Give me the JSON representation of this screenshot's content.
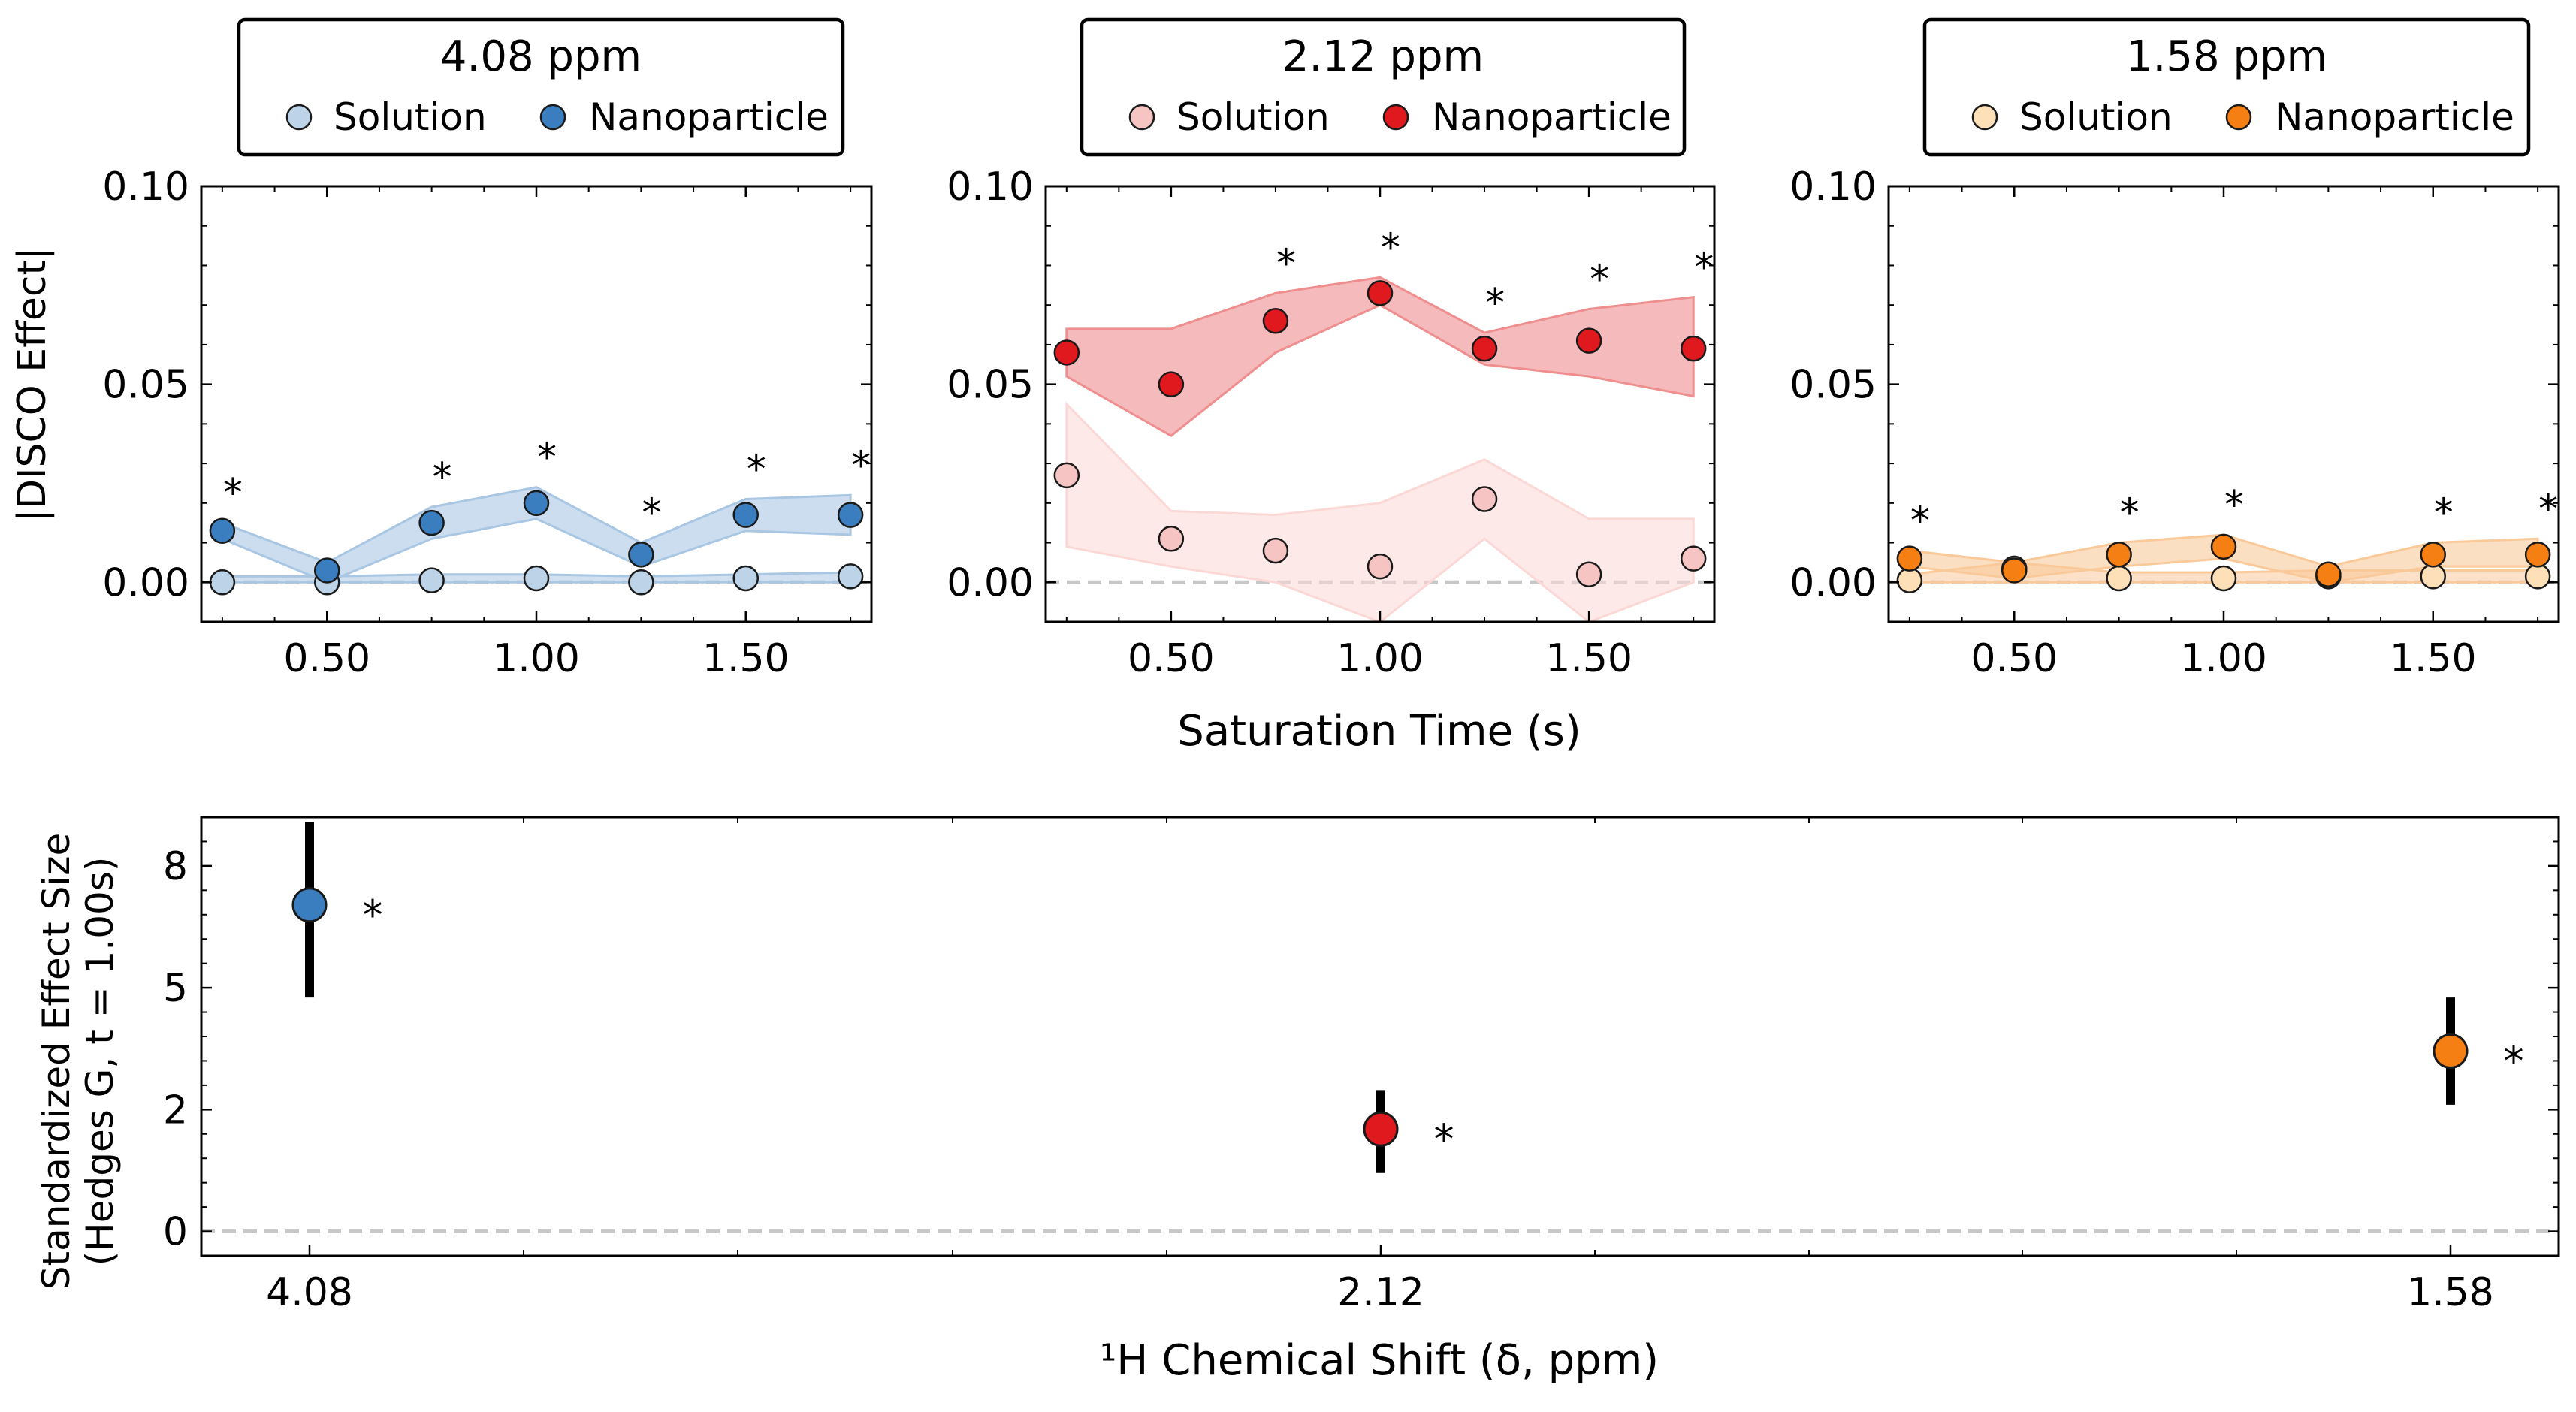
{
  "colors": {
    "blue": "#3a7ebf",
    "blue_light": "#bcd3e8",
    "blue_band": "#a9c6e3",
    "red": "#e0191f",
    "red_light": "#f6c4c2",
    "red_band": "#ef8e8f",
    "red_band_light": "#fbd8d6",
    "orange": "#f57f12",
    "orange_light": "#fde0b8",
    "orange_band": "#f9c99a",
    "zero_line": "#c8c8c8",
    "error_bar": "#000000"
  },
  "axes_common": {
    "shared_xlabel": "Saturation Time (s)",
    "ylabel": "|DISCO Effect|",
    "significance_marker": "*"
  },
  "chart_data": [
    {
      "type": "line",
      "title": "4.08 ppm",
      "legend": [
        "Solution",
        "Nanoparticle"
      ],
      "legend_position": "top",
      "ylim": [
        -0.01,
        0.1
      ],
      "xlim": [
        0.2,
        1.8
      ],
      "yticks": [
        "0.00",
        "0.05",
        "0.10"
      ],
      "xticks": [
        "0.50",
        "1.00",
        "1.50"
      ],
      "x": [
        0.25,
        0.5,
        0.75,
        1.0,
        1.25,
        1.5,
        1.75
      ],
      "series": [
        {
          "name": "Solution",
          "values": [
            0.0,
            0.0,
            0.0005,
            0.001,
            0.0,
            0.001,
            0.0015
          ],
          "band_low": [
            0.0,
            0.0,
            0.0,
            0.0,
            0.0,
            0.0,
            0.0
          ],
          "band_high": [
            0.0015,
            0.0015,
            0.002,
            0.002,
            0.0015,
            0.002,
            0.0025
          ]
        },
        {
          "name": "Nanoparticle",
          "values": [
            0.013,
            0.003,
            0.015,
            0.02,
            0.007,
            0.017,
            0.017
          ],
          "band_low": [
            0.011,
            0.0,
            0.011,
            0.016,
            0.004,
            0.013,
            0.012
          ],
          "band_high": [
            0.015,
            0.005,
            0.019,
            0.024,
            0.01,
            0.021,
            0.022
          ]
        }
      ],
      "significant": [
        true,
        false,
        true,
        true,
        true,
        true,
        true
      ]
    },
    {
      "type": "line",
      "title": "2.12 ppm",
      "legend": [
        "Solution",
        "Nanoparticle"
      ],
      "legend_position": "top",
      "ylim": [
        -0.01,
        0.1
      ],
      "xlim": [
        0.2,
        1.8
      ],
      "yticks": [
        "0.00",
        "0.05",
        "0.10"
      ],
      "xticks": [
        "0.50",
        "1.00",
        "1.50"
      ],
      "x": [
        0.25,
        0.5,
        0.75,
        1.0,
        1.25,
        1.5,
        1.75
      ],
      "series": [
        {
          "name": "Solution",
          "values": [
            0.027,
            0.011,
            0.008,
            0.004,
            0.021,
            0.002,
            0.006
          ],
          "band_low": [
            0.009,
            0.004,
            0.0,
            -0.01,
            0.011,
            -0.01,
            0.0
          ],
          "band_high": [
            0.045,
            0.018,
            0.017,
            0.02,
            0.031,
            0.016,
            0.016
          ]
        },
        {
          "name": "Nanoparticle",
          "values": [
            0.058,
            0.05,
            0.066,
            0.073,
            0.059,
            0.061,
            0.059
          ],
          "band_low": [
            0.052,
            0.037,
            0.058,
            0.07,
            0.055,
            0.052,
            0.047
          ],
          "band_high": [
            0.064,
            0.064,
            0.073,
            0.077,
            0.063,
            0.069,
            0.072
          ]
        }
      ],
      "significant": [
        false,
        false,
        true,
        true,
        true,
        true,
        true
      ]
    },
    {
      "type": "line",
      "title": "1.58 ppm",
      "legend": [
        "Solution",
        "Nanoparticle"
      ],
      "legend_position": "top",
      "ylim": [
        -0.01,
        0.1
      ],
      "xlim": [
        0.2,
        1.8
      ],
      "yticks": [
        "0.00",
        "0.05",
        "0.10"
      ],
      "xticks": [
        "0.50",
        "1.00",
        "1.50"
      ],
      "x": [
        0.25,
        0.5,
        0.75,
        1.0,
        1.25,
        1.5,
        1.75
      ],
      "series": [
        {
          "name": "Solution",
          "values": [
            0.0005,
            0.0035,
            0.001,
            0.001,
            0.0015,
            0.0015,
            0.0015
          ],
          "band_low": [
            0.0,
            0.0,
            0.0,
            0.0,
            0.0,
            0.0,
            0.0
          ],
          "band_high": [
            0.002,
            0.005,
            0.0025,
            0.0025,
            0.003,
            0.003,
            0.003
          ]
        },
        {
          "name": "Nanoparticle",
          "values": [
            0.006,
            0.003,
            0.007,
            0.009,
            0.002,
            0.007,
            0.007
          ],
          "band_low": [
            0.004,
            0.001,
            0.004,
            0.006,
            0.0,
            0.004,
            0.004
          ],
          "band_high": [
            0.008,
            0.005,
            0.01,
            0.012,
            0.004,
            0.01,
            0.011
          ]
        }
      ],
      "significant": [
        true,
        false,
        true,
        true,
        false,
        true,
        true
      ]
    },
    {
      "type": "scatter",
      "xlabel": "¹H Chemical Shift (δ, ppm)",
      "ylabel_line1": "Standardized Effect Size",
      "ylabel_line2": "(Hedges G, t = 1.00s)",
      "ylim": [
        -0.5,
        8.5
      ],
      "yticks": [
        "0",
        "2",
        "5",
        "8"
      ],
      "yticks_values": [
        0,
        2.5,
        5,
        7.5
      ],
      "categories": [
        "4.08",
        "2.12",
        "1.58"
      ],
      "values": [
        6.7,
        2.1,
        3.7
      ],
      "error_low": [
        4.8,
        1.2,
        2.6
      ],
      "error_high": [
        8.4,
        2.9,
        4.8
      ],
      "significant": [
        true,
        true,
        true
      ]
    }
  ]
}
